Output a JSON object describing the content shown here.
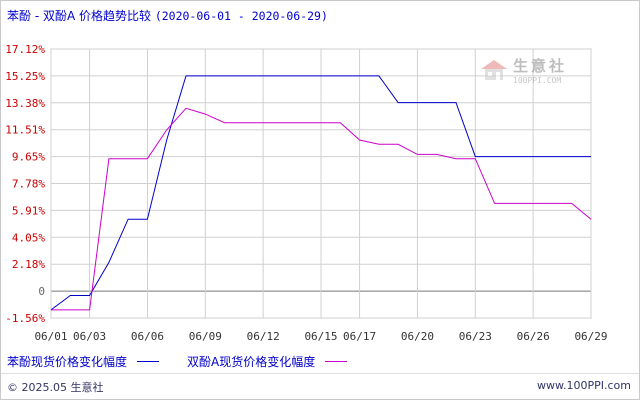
{
  "title": {
    "main": "苯酚 - 双酚A 价格趋势比较",
    "range": "(2020-06-01 - 2020-06-29)"
  },
  "watermark": {
    "name": "生意社",
    "url": "100PPI.COM"
  },
  "footer": {
    "copyright": "© 2025.05 生意社",
    "url": "www.100PPI.com"
  },
  "colors": {
    "series1": "#0000cc",
    "series2": "#cc00cc",
    "axis_text": "#cc0000",
    "grid": "#d0d0d0",
    "zero_line": "#777777"
  },
  "chart_data": {
    "type": "line",
    "x_ticks": [
      "06/01",
      "06/03",
      "06/06",
      "06/09",
      "06/12",
      "06/15",
      "06/17",
      "06/20",
      "06/23",
      "06/26",
      "06/29"
    ],
    "y_ticks": [
      "17.12%",
      "15.25%",
      "13.38%",
      "11.51%",
      "9.65%",
      "7.78%",
      "5.91%",
      "4.05%",
      "2.18%",
      "0",
      "-1.56%"
    ],
    "ylim": [
      -1.56,
      17.12
    ],
    "grid": true,
    "legend_position": "bottom",
    "x": [
      "06/01",
      "06/02",
      "06/03",
      "06/04",
      "06/05",
      "06/06",
      "06/07",
      "06/08",
      "06/09",
      "06/10",
      "06/11",
      "06/12",
      "06/13",
      "06/14",
      "06/15",
      "06/16",
      "06/17",
      "06/18",
      "06/19",
      "06/20",
      "06/21",
      "06/22",
      "06/23",
      "06/24",
      "06/25",
      "06/26",
      "06/27",
      "06/28",
      "06/29"
    ],
    "series": [
      {
        "name": "苯酚现货价格变化幅度",
        "color": "#0000cc",
        "values": [
          -1.0,
          0.0,
          0.0,
          2.3,
          5.3,
          5.3,
          10.8,
          15.25,
          15.25,
          15.25,
          15.25,
          15.25,
          15.25,
          15.25,
          15.25,
          15.25,
          15.25,
          15.25,
          13.4,
          13.4,
          13.4,
          13.4,
          9.65,
          9.65,
          9.65,
          9.65,
          9.65,
          9.65,
          9.65
        ]
      },
      {
        "name": "双酚A现货价格变化幅度",
        "color": "#cc00cc",
        "values": [
          -1.0,
          -1.0,
          -1.0,
          9.5,
          9.5,
          9.5,
          11.5,
          13.0,
          12.6,
          12.0,
          12.0,
          12.0,
          12.0,
          12.0,
          12.0,
          12.0,
          10.8,
          10.5,
          10.5,
          9.8,
          9.8,
          9.5,
          9.5,
          6.4,
          6.4,
          6.4,
          6.4,
          6.4,
          5.3
        ]
      }
    ]
  }
}
